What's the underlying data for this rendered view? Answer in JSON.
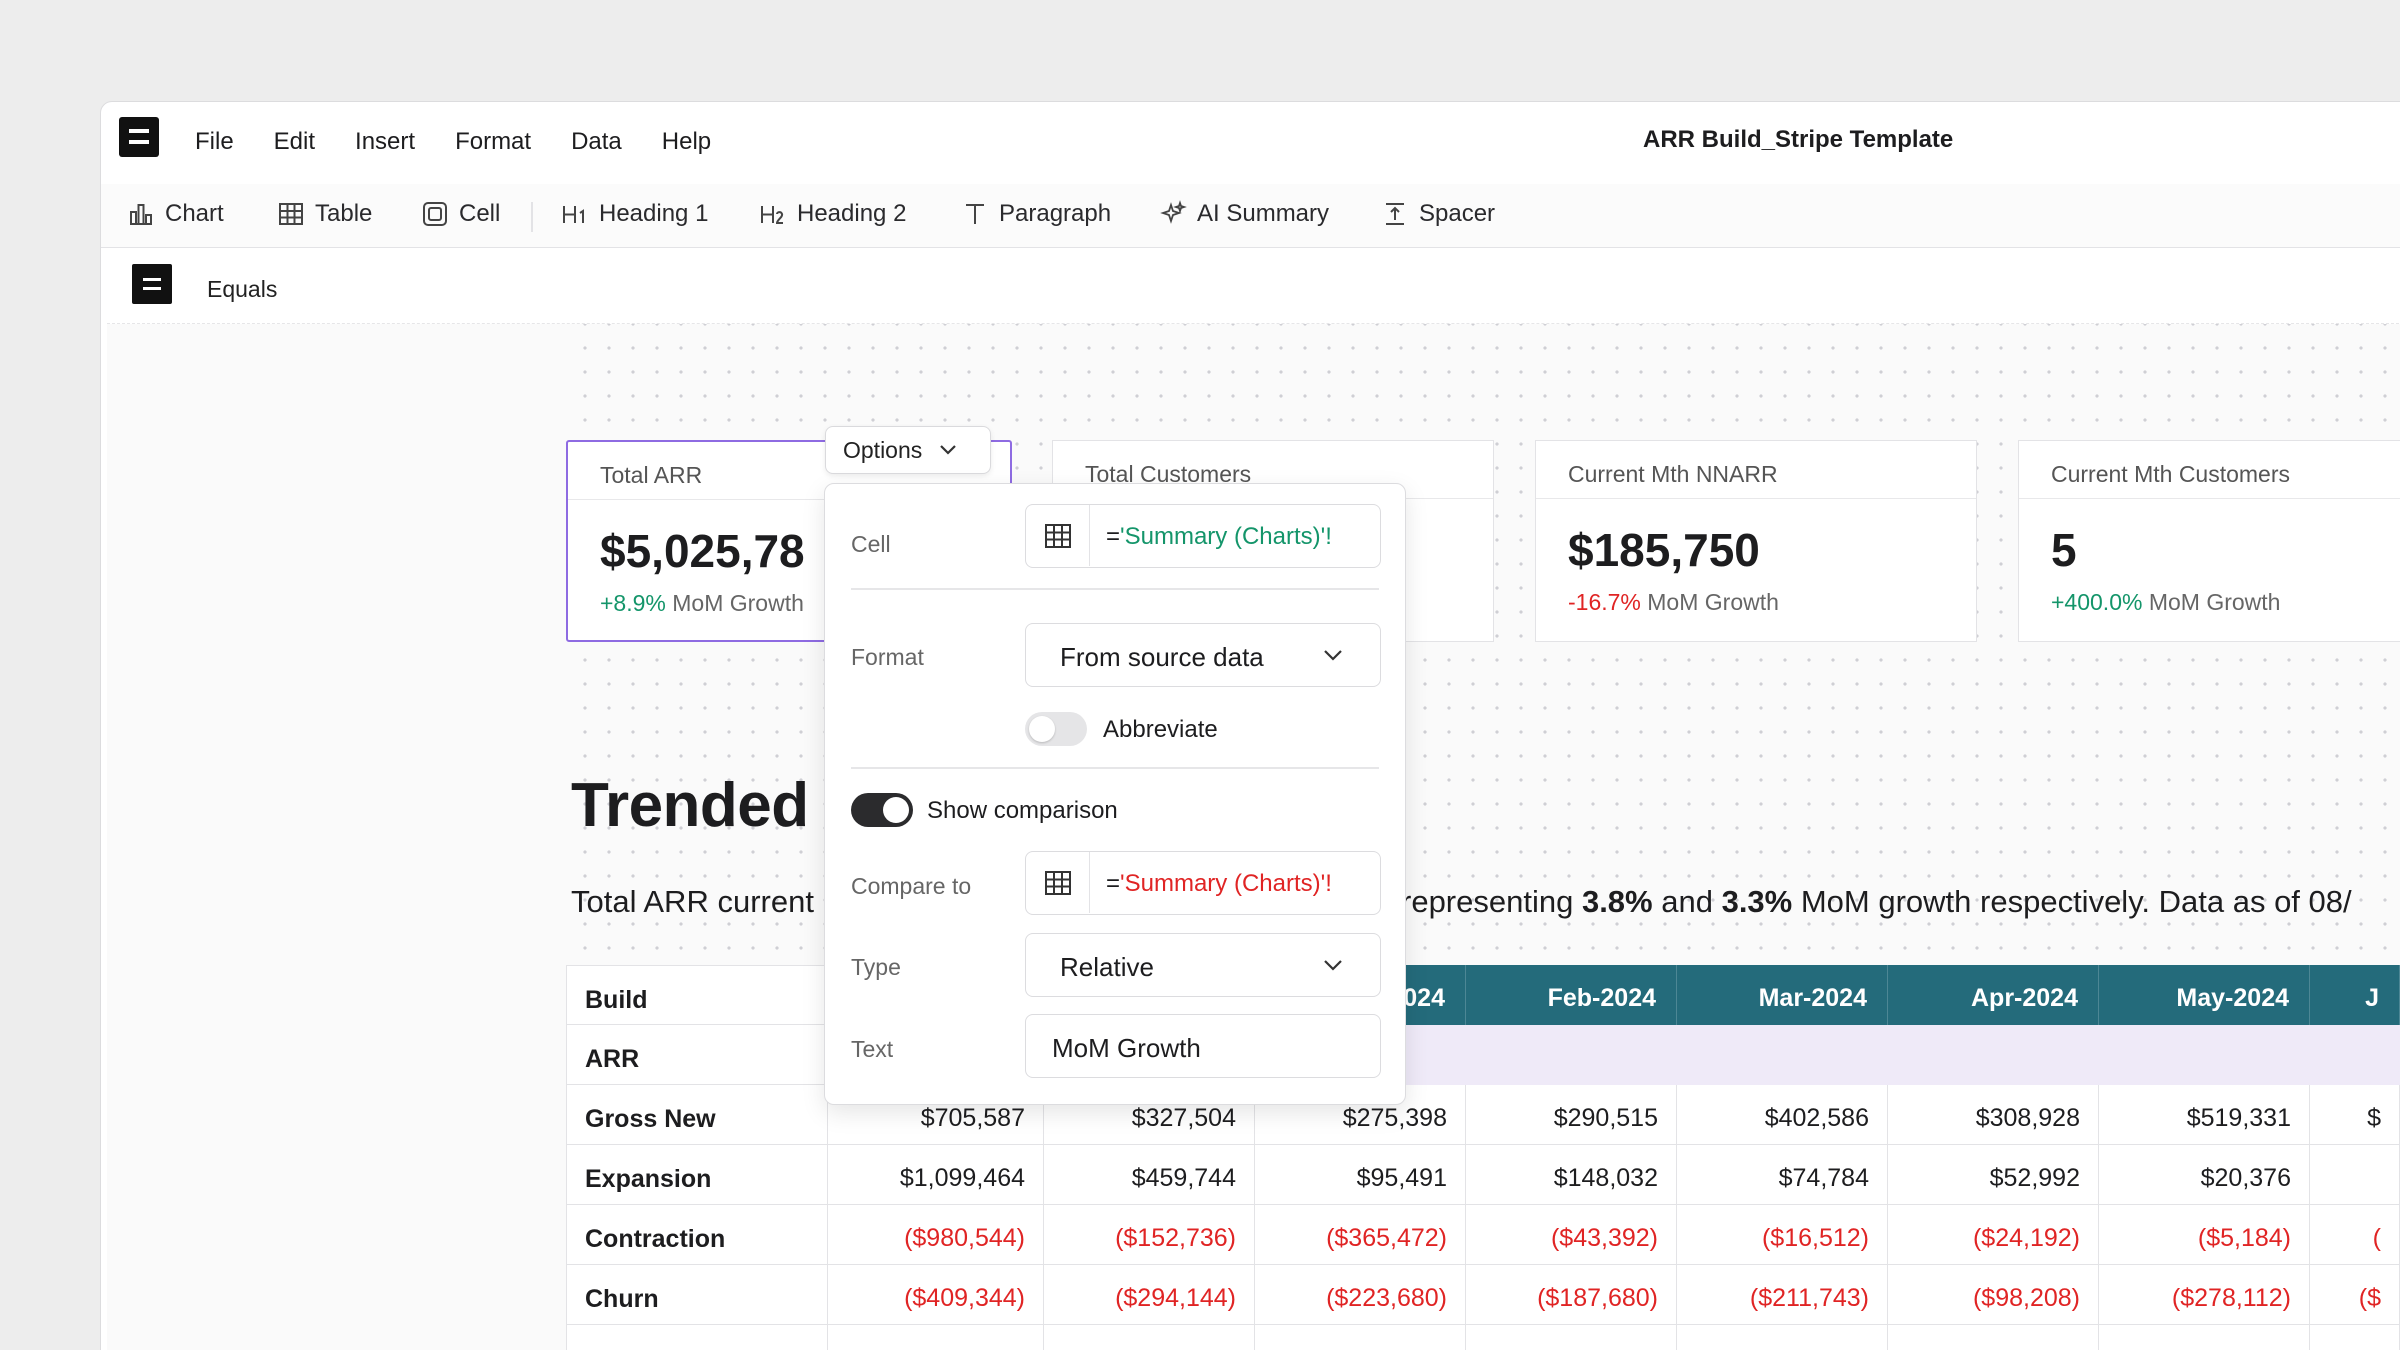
{
  "menubar": {
    "items": [
      "File",
      "Edit",
      "Insert",
      "Format",
      "Data",
      "Help"
    ],
    "doc_title": "ARR Build_Stripe Template"
  },
  "toolbar": {
    "chart": "Chart",
    "table": "Table",
    "cell": "Cell",
    "heading1": "Heading 1",
    "heading2": "Heading 2",
    "paragraph": "Paragraph",
    "ai_summary": "AI Summary",
    "spacer": "Spacer"
  },
  "doc": {
    "name": "Equals"
  },
  "cards": [
    {
      "title": "Total ARR",
      "value": "$5,025,78",
      "delta": "+8.9%",
      "delta_label": "MoM Growth"
    },
    {
      "title": "Total Customers"
    },
    {
      "title": "Current Mth NNARR",
      "value": "$185,750",
      "delta": "-16.7%",
      "delta_label": "MoM Growth"
    },
    {
      "title": "Current Mth Customers",
      "value": "5",
      "delta": "+400.0%",
      "delta_label": "MoM Growth"
    }
  ],
  "options_button": "Options",
  "popover": {
    "cell_label": "Cell",
    "cell_formula_prefix": "=",
    "cell_formula": "'Summary (Charts)'!",
    "format_label": "Format",
    "format_value": "From source data",
    "abbreviate_label": "Abbreviate",
    "abbreviate_on": false,
    "show_comparison_label": "Show comparison",
    "show_comparison_on": true,
    "compare_label": "Compare to",
    "compare_formula_prefix": "=",
    "compare_formula": "'Summary (Charts)'!",
    "type_label": "Type",
    "type_value": "Relative",
    "text_label": "Text",
    "text_value": "MoM Growth"
  },
  "heading": "Trended /",
  "paragraph": {
    "left": "Total ARR current",
    "right_a": "representing ",
    "right_b": "3.8%",
    "right_c": " and ",
    "right_d": "3.3%",
    "right_e": " MoM growth respectively. Data as of 08/"
  },
  "table": {
    "row_labels": [
      "Build",
      "ARR",
      "Gross New",
      "Expansion",
      "Contraction",
      "Churn"
    ],
    "headers": [
      "024",
      "Feb-2024",
      "Mar-2024",
      "Apr-2024",
      "May-2024",
      "J"
    ],
    "rows": [
      {
        "name": "Gross New",
        "values": [
          "$705,587",
          "$327,504",
          "$275,398",
          "$290,515",
          "$402,586",
          "$308,928",
          "$519,331",
          "$"
        ],
        "negative": false
      },
      {
        "name": "Expansion",
        "values": [
          "$1,099,464",
          "$459,744",
          "$95,491",
          "$148,032",
          "$74,784",
          "$52,992",
          "$20,376",
          ""
        ],
        "negative": false
      },
      {
        "name": "Contraction",
        "values": [
          "($980,544)",
          "($152,736)",
          "($365,472)",
          "($43,392)",
          "($16,512)",
          "($24,192)",
          "($5,184)",
          "("
        ],
        "negative": true
      },
      {
        "name": "Churn",
        "values": [
          "($409,344)",
          "($294,144)",
          "($223,680)",
          "($187,680)",
          "($211,743)",
          "($98,208)",
          "($278,112)",
          "($"
        ],
        "negative": true
      }
    ]
  },
  "colors": {
    "accent": "#8e6be2",
    "header": "#246b7b",
    "positive": "#14956a",
    "negative": "#e02424",
    "formula_green": "#14956a",
    "formula_red": "#e02424"
  }
}
